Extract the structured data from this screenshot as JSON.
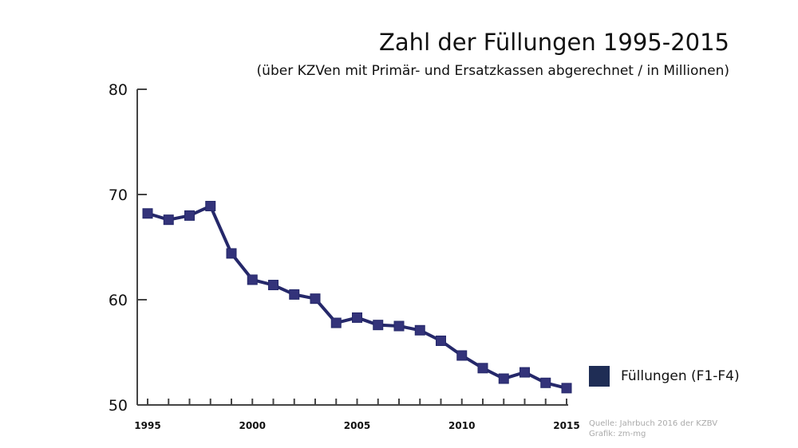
{
  "chart_data": {
    "type": "line",
    "title": "Zahl der Füllungen 1995-2015",
    "subtitle": "(über KZVen mit Primär- und Ersatzkassen abgerechnet / in Millionen)",
    "xlabel": "",
    "ylabel": "",
    "xlim": [
      1995,
      2015
    ],
    "ylim": [
      50,
      80
    ],
    "yticks": [
      "50",
      "60",
      "70",
      "80"
    ],
    "xticks": [
      "1995",
      "2000",
      "2005",
      "2010",
      "2015"
    ],
    "x": [
      1995,
      1996,
      1997,
      1998,
      1999,
      2000,
      2001,
      2002,
      2003,
      2004,
      2005,
      2006,
      2007,
      2008,
      2009,
      2010,
      2011,
      2012,
      2013,
      2014,
      2015
    ],
    "series": [
      {
        "name": "Füllungen (F1-F4)",
        "color": "#25286a",
        "values": [
          68.2,
          67.6,
          68.0,
          68.9,
          64.4,
          61.9,
          61.4,
          60.5,
          60.1,
          57.8,
          58.3,
          57.6,
          57.5,
          57.1,
          56.1,
          54.7,
          53.5,
          52.5,
          53.1,
          52.1,
          51.6
        ]
      }
    ],
    "legend_position": "right",
    "grid": false,
    "source": "Quelle: Jahrbuch 2016 der KZBV",
    "credit": "Grafik: zm-mg"
  }
}
